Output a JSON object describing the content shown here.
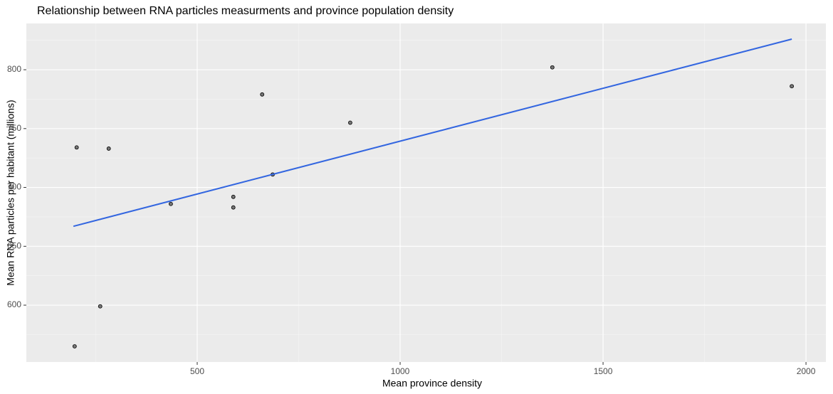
{
  "chart_data": {
    "type": "scatter",
    "title": "Relationship between RNA particles measurments and province population density",
    "x_label": "Mean province density",
    "y_label": "Mean RNA particles per habitant (millions)",
    "x": [
      198,
      203,
      261,
      282,
      435,
      589,
      589,
      660,
      686,
      877,
      1375,
      1965
    ],
    "values": [
      565,
      734,
      599,
      733,
      686,
      692,
      683,
      779,
      711,
      755,
      802,
      786
    ],
    "color": "#5a5a5a",
    "trend": {
      "x": [
        195,
        1965
      ],
      "values": [
        667,
        826
      ],
      "color": "#3366e0"
    },
    "xlim": [
      79,
      2049
    ],
    "ylim": [
      551.7,
      839.3
    ],
    "xticks": [
      500,
      1000,
      1500,
      2000
    ],
    "yticks": [
      600,
      650,
      700,
      750,
      800
    ],
    "x_minor_ticks": [
      250,
      750,
      1250,
      1750
    ],
    "y_minor_ticks": [
      575,
      625,
      675,
      725,
      775,
      825
    ],
    "grid": true
  }
}
